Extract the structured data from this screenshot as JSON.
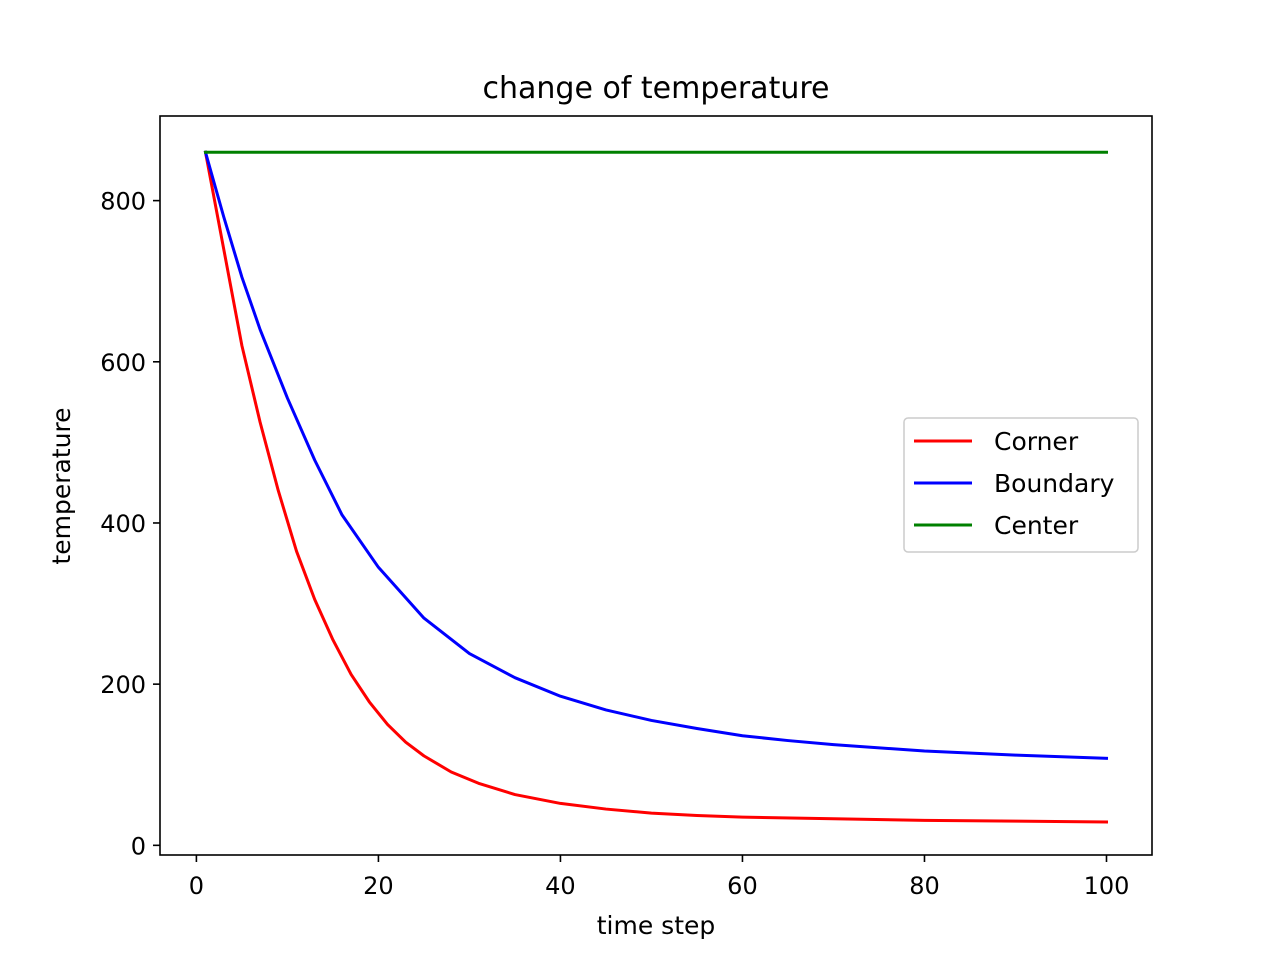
{
  "chart_data": {
    "type": "line",
    "title": "change of temperature",
    "xlabel": "time step",
    "ylabel": "temperature",
    "xlim": [
      -4,
      105
    ],
    "ylim": [
      -12,
      905
    ],
    "xticks": [
      0,
      20,
      40,
      60,
      80,
      100
    ],
    "yticks": [
      0,
      200,
      400,
      600,
      800
    ],
    "grid": false,
    "legend_position": "center-right",
    "series": [
      {
        "name": "Corner",
        "color": "#ff0000",
        "x": [
          1,
          3,
          5,
          7,
          9,
          11,
          13,
          15,
          17,
          19,
          21,
          23,
          25,
          28,
          31,
          35,
          40,
          45,
          50,
          55,
          60,
          70,
          80,
          90,
          100
        ],
        "y": [
          860,
          740,
          620,
          525,
          440,
          365,
          305,
          255,
          212,
          178,
          150,
          128,
          111,
          91,
          77,
          63,
          52,
          45,
          40,
          37,
          35,
          33,
          31,
          30,
          29
        ]
      },
      {
        "name": "Boundary",
        "color": "#0000ff",
        "x": [
          1,
          3,
          5,
          7,
          10,
          13,
          16,
          20,
          25,
          30,
          35,
          40,
          45,
          50,
          55,
          60,
          65,
          70,
          80,
          90,
          100
        ],
        "y": [
          860,
          780,
          705,
          640,
          555,
          478,
          410,
          345,
          282,
          238,
          208,
          185,
          168,
          155,
          145,
          136,
          130,
          125,
          117,
          112,
          108
        ]
      },
      {
        "name": "Center",
        "color": "#008000",
        "x": [
          1,
          100
        ],
        "y": [
          860,
          860
        ]
      }
    ]
  }
}
